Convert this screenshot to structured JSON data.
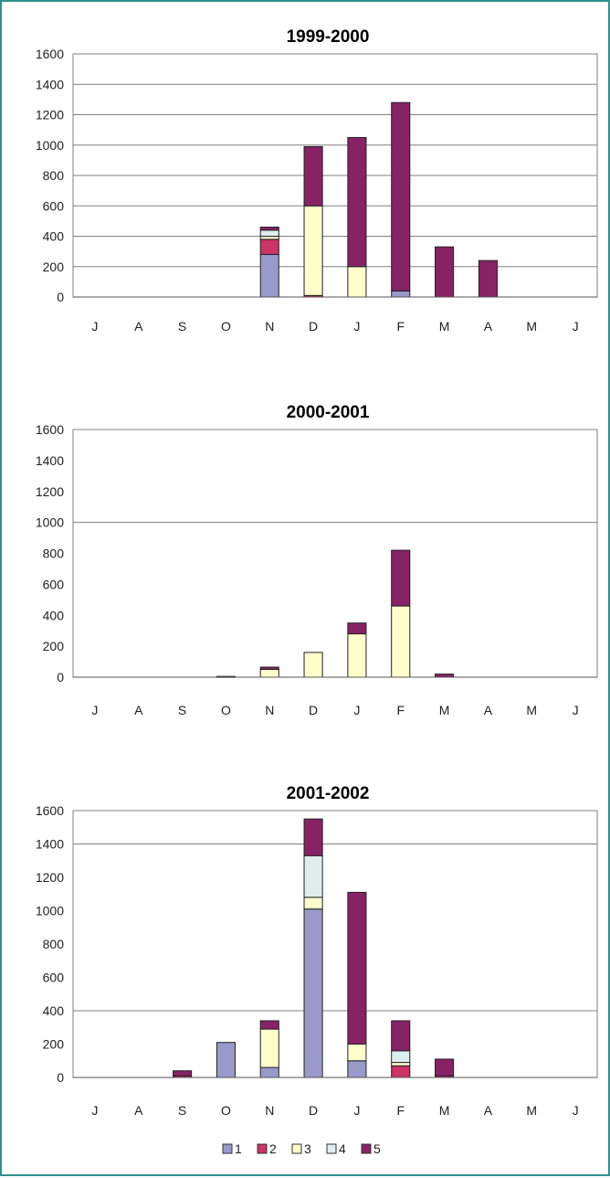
{
  "colors": {
    "frame": "#2f8f8f",
    "series": [
      "#9999cc",
      "#cc3366",
      "#ffffcc",
      "#ddeeee",
      "#882266"
    ]
  },
  "legend": {
    "placement": "bottom",
    "items": [
      "1",
      "2",
      "3",
      "4",
      "5"
    ]
  },
  "chart_data": [
    {
      "type": "bar",
      "stacked": true,
      "title": "1999-2000",
      "categories": [
        "J",
        "A",
        "S",
        "O",
        "N",
        "D",
        "J",
        "F",
        "M",
        "A",
        "M",
        "J"
      ],
      "ylim": [
        0,
        1600
      ],
      "yticks": [
        0,
        200,
        400,
        600,
        800,
        1000,
        1200,
        1400,
        1600
      ],
      "gridlines": [
        200,
        400,
        600,
        800,
        1000,
        1200,
        1400,
        1600
      ],
      "series": [
        {
          "name": "1",
          "values": [
            0,
            0,
            0,
            0,
            280,
            0,
            0,
            40,
            0,
            0,
            0,
            0
          ]
        },
        {
          "name": "2",
          "values": [
            0,
            0,
            0,
            0,
            100,
            10,
            0,
            0,
            0,
            0,
            0,
            0
          ]
        },
        {
          "name": "3",
          "values": [
            0,
            0,
            0,
            0,
            20,
            590,
            200,
            0,
            0,
            0,
            0,
            0
          ]
        },
        {
          "name": "4",
          "values": [
            0,
            0,
            0,
            0,
            40,
            0,
            0,
            0,
            0,
            0,
            0,
            0
          ]
        },
        {
          "name": "5",
          "values": [
            0,
            0,
            0,
            0,
            20,
            390,
            850,
            1240,
            330,
            240,
            0,
            0
          ]
        }
      ]
    },
    {
      "type": "bar",
      "stacked": true,
      "title": "2000-2001",
      "categories": [
        "J",
        "A",
        "S",
        "O",
        "N",
        "D",
        "J",
        "F",
        "M",
        "A",
        "M",
        "J"
      ],
      "ylim": [
        0,
        1600
      ],
      "yticks": [
        0,
        200,
        400,
        600,
        800,
        1000,
        1200,
        1400,
        1600
      ],
      "gridlines": [
        1000,
        1600
      ],
      "series": [
        {
          "name": "1",
          "values": [
            0,
            0,
            0,
            0,
            0,
            0,
            0,
            0,
            0,
            0,
            0,
            0
          ]
        },
        {
          "name": "2",
          "values": [
            0,
            0,
            0,
            0,
            0,
            0,
            0,
            0,
            0,
            0,
            0,
            0
          ]
        },
        {
          "name": "3",
          "values": [
            0,
            0,
            0,
            0,
            50,
            160,
            280,
            460,
            0,
            0,
            0,
            0
          ]
        },
        {
          "name": "4",
          "values": [
            0,
            0,
            0,
            0,
            0,
            0,
            0,
            0,
            0,
            0,
            0,
            0
          ]
        },
        {
          "name": "5",
          "values": [
            0,
            0,
            0,
            5,
            15,
            0,
            70,
            360,
            20,
            0,
            0,
            0
          ]
        }
      ]
    },
    {
      "type": "bar",
      "stacked": true,
      "title": "2001-2002",
      "categories": [
        "J",
        "A",
        "S",
        "O",
        "N",
        "D",
        "J",
        "F",
        "M",
        "A",
        "M",
        "J"
      ],
      "ylim": [
        0,
        1600
      ],
      "yticks": [
        0,
        200,
        400,
        600,
        800,
        1000,
        1200,
        1400,
        1600
      ],
      "gridlines": [
        400,
        1400,
        1600
      ],
      "series": [
        {
          "name": "1",
          "values": [
            0,
            0,
            0,
            210,
            60,
            1010,
            100,
            0,
            0,
            0,
            0,
            0
          ]
        },
        {
          "name": "2",
          "values": [
            0,
            0,
            10,
            0,
            0,
            0,
            0,
            70,
            10,
            0,
            0,
            0
          ]
        },
        {
          "name": "3",
          "values": [
            0,
            0,
            0,
            0,
            230,
            70,
            100,
            20,
            0,
            0,
            0,
            0
          ]
        },
        {
          "name": "4",
          "values": [
            0,
            0,
            0,
            0,
            0,
            250,
            0,
            70,
            0,
            0,
            0,
            0
          ]
        },
        {
          "name": "5",
          "values": [
            0,
            0,
            30,
            0,
            50,
            220,
            910,
            180,
            100,
            0,
            0,
            0
          ]
        }
      ]
    }
  ]
}
